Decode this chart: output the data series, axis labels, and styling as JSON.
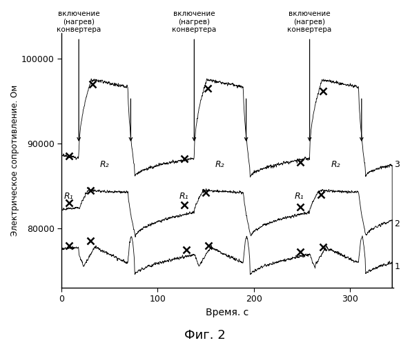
{
  "title": "Фиг. 2",
  "xlabel": "Время. с",
  "ylabel": "Электрическое сопротивление. Ом",
  "xlim": [
    0,
    345
  ],
  "ylim": [
    73000,
    103000
  ],
  "yticks": [
    80000,
    90000,
    100000
  ],
  "xticks": [
    0,
    100,
    200,
    300
  ],
  "background_color": "#ffffff",
  "line_color": "#000000",
  "heating_starts": [
    18,
    138,
    258
  ],
  "heating_ends": [
    72,
    192,
    312
  ],
  "ann_text": "включение\n(нагрев)\nконвертера",
  "R1_label": "R₁",
  "R2_label": "R₂",
  "label1": "1",
  "label2": "2",
  "label3": "3",
  "curve3_base": 88500,
  "curve3_peak": 97500,
  "curve2_base": 82000,
  "curve2_peak": 84500,
  "curve1_base": 77000,
  "curve1_dip": 75000
}
